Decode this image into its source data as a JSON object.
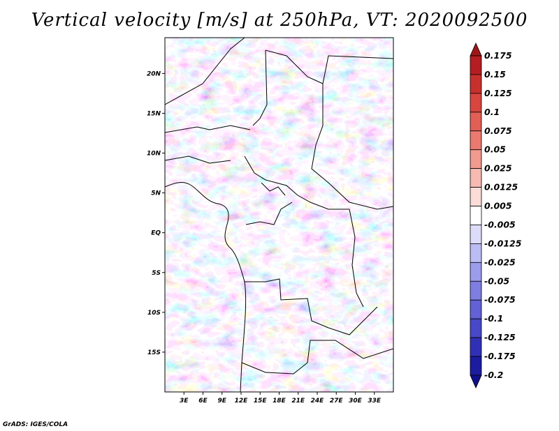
{
  "title": "Vertical velocity [m/s] at 250hPa, VT: 2020092500",
  "credit": "GrADS: IGES/COLA",
  "map": {
    "lon_range": [
      0,
      36
    ],
    "lat_range": [
      -20,
      24.5
    ],
    "lon_ticks": [
      {
        "value": 3,
        "label": "3E"
      },
      {
        "value": 6,
        "label": "6E"
      },
      {
        "value": 9,
        "label": "9E"
      },
      {
        "value": 12,
        "label": "12E"
      },
      {
        "value": 15,
        "label": "15E"
      },
      {
        "value": 18,
        "label": "18E"
      },
      {
        "value": 21,
        "label": "21E"
      },
      {
        "value": 24,
        "label": "24E"
      },
      {
        "value": 27,
        "label": "27E"
      },
      {
        "value": 30,
        "label": "30E"
      },
      {
        "value": 33,
        "label": "33E"
      }
    ],
    "lat_ticks": [
      {
        "value": 20,
        "label": "20N"
      },
      {
        "value": 15,
        "label": "15N"
      },
      {
        "value": 10,
        "label": "10N"
      },
      {
        "value": 5,
        "label": "5N"
      },
      {
        "value": 0,
        "label": "EQ"
      },
      {
        "value": -5,
        "label": "5S"
      },
      {
        "value": -10,
        "label": "10S"
      },
      {
        "value": -15,
        "label": "15S"
      }
    ]
  },
  "colorbar": {
    "labels": [
      "0.175",
      "0.15",
      "0.125",
      "0.1",
      "0.075",
      "0.05",
      "0.025",
      "0.0125",
      "0.005",
      "-0.005",
      "-0.0125",
      "-0.025",
      "-0.05",
      "-0.075",
      "-0.1",
      "-0.125",
      "-0.175",
      "-0.2"
    ],
    "colors": [
      "#a01618",
      "#b41e22",
      "#c8302e",
      "#d8463f",
      "#e25f55",
      "#ea7a70",
      "#f09a90",
      "#f6bab2",
      "#fbdcd6",
      "#ffffff",
      "#dcdcfa",
      "#bcbcf4",
      "#9c9cec",
      "#7e7ee2",
      "#6262d6",
      "#4848c8",
      "#3030b6",
      "#1c1ca0",
      "#10108a"
    ]
  }
}
